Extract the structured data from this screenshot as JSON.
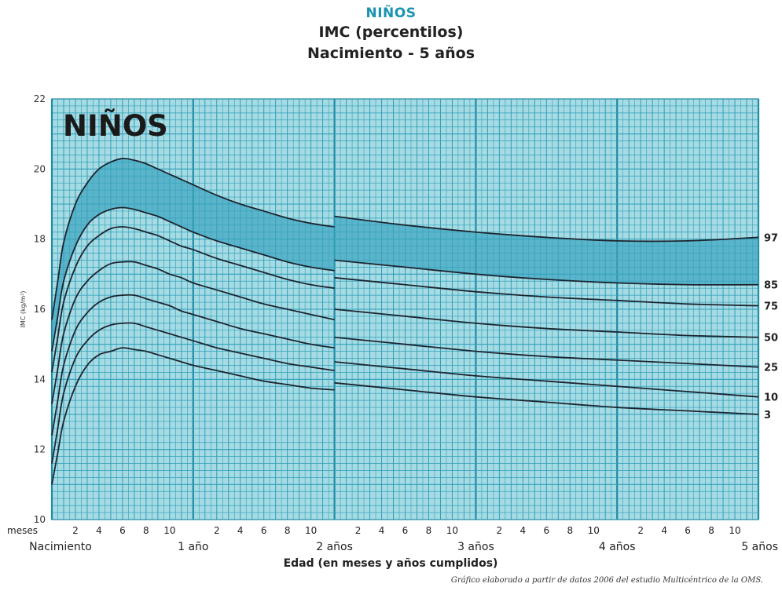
{
  "header": {
    "kicker": "NIÑOS",
    "title": "IMC (percentilos)",
    "subtitle": "Nacimiento - 5 años"
  },
  "footnote": "Gráfico elaborado a partir de datos 2006 del estudio Multicéntrico de la OMS.",
  "colors": {
    "grid_bg": "#a6dbe4",
    "grid_line": "#2f9fb8",
    "grid_major": "#1e8aa5",
    "curve": "#1c2530",
    "shade": "#3ba4bf",
    "kicker": "#1a93b0"
  },
  "chart_data": {
    "type": "line",
    "in_plot_label": "NIÑOS",
    "xlabel": "Edad (en meses y años cumplidos)",
    "ylabel": "IMC (kg/m²)",
    "x_unit_label": "meses",
    "xlim": [
      0,
      60
    ],
    "ylim": [
      10,
      22
    ],
    "y_ticks": [
      10,
      12,
      14,
      16,
      18,
      20,
      22
    ],
    "month_tick_labels": [
      "2",
      "4",
      "6",
      "8",
      "10"
    ],
    "year_labels": [
      {
        "x": 0,
        "label": "Nacimiento"
      },
      {
        "x": 12,
        "label": "1 año"
      },
      {
        "x": 24,
        "label": "2 años"
      },
      {
        "x": 36,
        "label": "3 años"
      },
      {
        "x": 48,
        "label": "4 años"
      },
      {
        "x": 60,
        "label": "5 años"
      }
    ],
    "grid": true,
    "shaded_band": [
      "85",
      "97"
    ],
    "series": [
      {
        "name": "3",
        "x": [
          0,
          0.5,
          1,
          2,
          3,
          4,
          5,
          6,
          7,
          8,
          9,
          10,
          11,
          12,
          14,
          16,
          18,
          20,
          22,
          24,
          24,
          30,
          36,
          42,
          48,
          54,
          60
        ],
        "y": [
          11.0,
          11.9,
          12.8,
          13.8,
          14.4,
          14.7,
          14.8,
          14.9,
          14.85,
          14.8,
          14.7,
          14.6,
          14.5,
          14.4,
          14.25,
          14.1,
          13.95,
          13.85,
          13.75,
          13.7,
          13.9,
          13.7,
          13.5,
          13.35,
          13.2,
          13.1,
          13.0
        ]
      },
      {
        "name": "10",
        "x": [
          0,
          0.5,
          1,
          2,
          3,
          4,
          5,
          6,
          7,
          8,
          9,
          10,
          11,
          12,
          14,
          16,
          18,
          20,
          22,
          24,
          24,
          30,
          36,
          42,
          48,
          54,
          60
        ],
        "y": [
          11.6,
          12.6,
          13.6,
          14.6,
          15.1,
          15.4,
          15.55,
          15.6,
          15.6,
          15.5,
          15.4,
          15.3,
          15.2,
          15.1,
          14.9,
          14.75,
          14.6,
          14.45,
          14.35,
          14.25,
          14.5,
          14.3,
          14.1,
          13.95,
          13.8,
          13.65,
          13.5
        ]
      },
      {
        "name": "25",
        "x": [
          0,
          0.5,
          1,
          2,
          3,
          4,
          5,
          6,
          7,
          8,
          9,
          10,
          11,
          12,
          14,
          16,
          18,
          20,
          22,
          24,
          24,
          30,
          36,
          42,
          48,
          54,
          60
        ],
        "y": [
          12.4,
          13.4,
          14.4,
          15.4,
          15.9,
          16.2,
          16.35,
          16.4,
          16.4,
          16.3,
          16.2,
          16.1,
          15.95,
          15.85,
          15.65,
          15.45,
          15.3,
          15.15,
          15.0,
          14.9,
          15.2,
          15.0,
          14.8,
          14.65,
          14.55,
          14.45,
          14.35
        ]
      },
      {
        "name": "50",
        "x": [
          0,
          0.5,
          1,
          2,
          3,
          4,
          5,
          6,
          7,
          8,
          9,
          10,
          11,
          12,
          14,
          16,
          18,
          20,
          22,
          24,
          24,
          30,
          36,
          42,
          48,
          54,
          60
        ],
        "y": [
          13.3,
          14.3,
          15.3,
          16.3,
          16.8,
          17.1,
          17.3,
          17.35,
          17.35,
          17.25,
          17.15,
          17.0,
          16.9,
          16.75,
          16.55,
          16.35,
          16.15,
          16.0,
          15.85,
          15.7,
          16.0,
          15.8,
          15.6,
          15.45,
          15.35,
          15.25,
          15.2
        ]
      },
      {
        "name": "75",
        "x": [
          0,
          0.5,
          1,
          2,
          3,
          4,
          5,
          6,
          7,
          8,
          9,
          10,
          11,
          12,
          14,
          16,
          18,
          20,
          22,
          24,
          24,
          30,
          36,
          42,
          48,
          54,
          60
        ],
        "y": [
          14.2,
          15.2,
          16.2,
          17.2,
          17.8,
          18.1,
          18.3,
          18.35,
          18.3,
          18.2,
          18.1,
          17.95,
          17.8,
          17.7,
          17.45,
          17.25,
          17.05,
          16.85,
          16.7,
          16.6,
          16.9,
          16.7,
          16.5,
          16.35,
          16.25,
          16.15,
          16.1
        ]
      },
      {
        "name": "85",
        "x": [
          0,
          0.5,
          1,
          2,
          3,
          4,
          5,
          6,
          7,
          8,
          9,
          10,
          11,
          12,
          14,
          16,
          18,
          20,
          22,
          24,
          24,
          30,
          36,
          42,
          48,
          54,
          60
        ],
        "y": [
          14.8,
          15.8,
          16.8,
          17.8,
          18.4,
          18.7,
          18.85,
          18.9,
          18.85,
          18.75,
          18.65,
          18.5,
          18.35,
          18.2,
          17.95,
          17.75,
          17.55,
          17.35,
          17.2,
          17.1,
          17.4,
          17.2,
          17.0,
          16.85,
          16.75,
          16.7,
          16.7
        ]
      },
      {
        "name": "97",
        "x": [
          0,
          0.5,
          1,
          2,
          3,
          4,
          5,
          6,
          7,
          8,
          9,
          10,
          11,
          12,
          14,
          16,
          18,
          20,
          22,
          24,
          24,
          30,
          36,
          42,
          48,
          54,
          60
        ],
        "y": [
          15.7,
          16.8,
          17.9,
          19.0,
          19.6,
          20.0,
          20.2,
          20.3,
          20.25,
          20.15,
          20.0,
          19.85,
          19.7,
          19.55,
          19.25,
          19.0,
          18.8,
          18.6,
          18.45,
          18.35,
          18.65,
          18.4,
          18.2,
          18.05,
          17.95,
          17.95,
          18.05
        ]
      }
    ]
  }
}
